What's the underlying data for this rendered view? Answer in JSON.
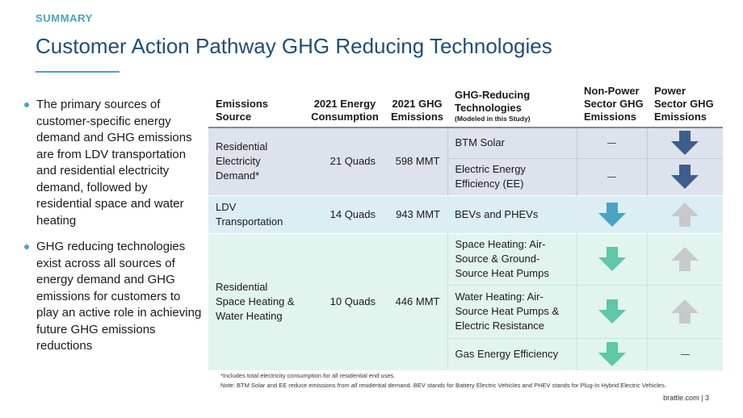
{
  "kicker": "SUMMARY",
  "title": "Customer Action Pathway GHG Reducing Technologies",
  "bullets": [
    "The primary sources of customer-specific energy demand and GHG emissions are from LDV transportation and residential electricity demand, followed by residential space and water heating",
    "GHG reducing technologies exist across all sources of energy demand and GHG emissions for customers to play an active role in achieving future GHG emissions reductions"
  ],
  "table": {
    "headers": {
      "source": "Emissions Source",
      "energy": "2021 Energy Consumption",
      "ghg": "2021 GHG Emissions",
      "tech": "GHG-Reducing Technologies",
      "tech_sub": "(Modeled in this Study)",
      "nonpower": "Non-Power Sector GHG Emissions",
      "power": "Power Sector GHG Emissions"
    },
    "groups": [
      {
        "source": "Residential Electricity Demand*",
        "energy": "21 Quads",
        "ghg": "598 MMT",
        "techs": [
          {
            "name": "BTM Solar",
            "nonpower": "none",
            "power": "down-navy"
          },
          {
            "name": "Electric Energy Efficiency (EE)",
            "nonpower": "none",
            "power": "down-navy"
          }
        ]
      },
      {
        "source": "LDV Transportation",
        "energy": "14 Quads",
        "ghg": "943 MMT",
        "techs": [
          {
            "name": "BEVs and PHEVs",
            "nonpower": "down-teal",
            "power": "up-gray"
          }
        ]
      },
      {
        "source": "Residential Space Heating & Water Heating",
        "energy": "10 Quads",
        "ghg": "446 MMT",
        "techs": [
          {
            "name": "Space Heating: Air-Source & Ground-Source Heat Pumps",
            "nonpower": "down-green",
            "power": "up-gray"
          },
          {
            "name": "Water Heating: Air-Source Heat Pumps & Electric Resistance",
            "nonpower": "down-green",
            "power": "up-gray"
          },
          {
            "name": "Gas Energy Efficiency",
            "nonpower": "down-green",
            "power": "none"
          }
        ]
      }
    ]
  },
  "footnotes": {
    "fn1": "*Includes total electricity consumption for all residential end uses.",
    "fn2_pre": "Note: BTM Solar and EE reduce emissions from ",
    "fn2_em": "all",
    "fn2_post": " residential demand. BEV stands for Battery Electric Vehicles and PHEV stands for Plug-In Hybrid Electric Vehicles."
  },
  "footer": "brattle.com | 3",
  "colors": {
    "accent": "#4aa3c2",
    "title": "#1f4e79",
    "arrow_navy": "#3e5d8a",
    "arrow_teal": "#4aa3c2",
    "arrow_green": "#5dc7a6",
    "arrow_gray": "#c7c9cc",
    "band_residential": "#dde2ec",
    "band_ldv": "#dbeef4",
    "band_heating": "#e2f4ee"
  },
  "icons": {
    "down-navy": "arrow-down-icon",
    "down-teal": "arrow-down-icon",
    "down-green": "arrow-down-icon",
    "up-gray": "arrow-up-icon",
    "none": "dash-icon"
  }
}
